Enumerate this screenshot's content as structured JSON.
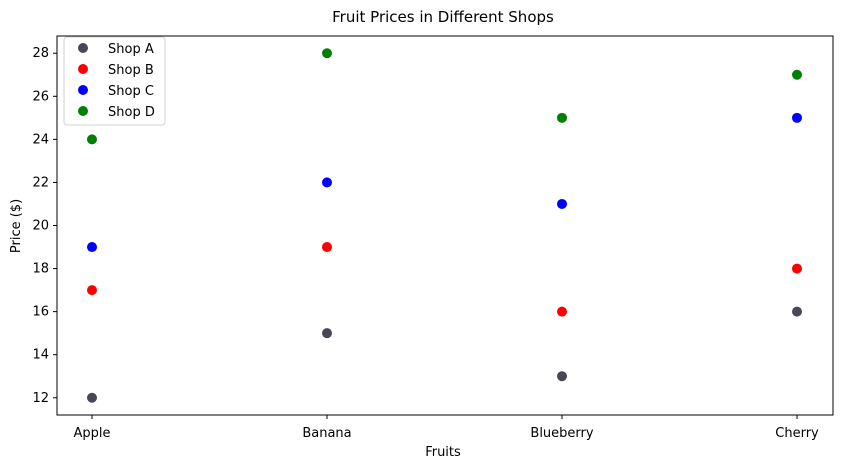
{
  "chart_data": {
    "type": "scatter",
    "title": "Fruit Prices in Different Shops",
    "xlabel": "Fruits",
    "ylabel": "Price ($)",
    "categories": [
      "Apple",
      "Banana",
      "Blueberry",
      "Cherry"
    ],
    "ylim": [
      11.2,
      28.8
    ],
    "yticks": [
      12,
      14,
      16,
      18,
      20,
      22,
      24,
      26,
      28
    ],
    "grid": false,
    "legend_position": "top-left",
    "series": [
      {
        "name": "Shop A",
        "color": "#474756",
        "values": [
          12,
          15,
          13,
          16
        ]
      },
      {
        "name": "Shop B",
        "color": "#ff0000",
        "values": [
          17,
          19,
          16,
          18
        ]
      },
      {
        "name": "Shop C",
        "color": "#0000ff",
        "values": [
          19,
          22,
          21,
          25
        ]
      },
      {
        "name": "Shop D",
        "color": "#008000",
        "values": [
          24,
          28,
          25,
          27
        ]
      }
    ]
  }
}
